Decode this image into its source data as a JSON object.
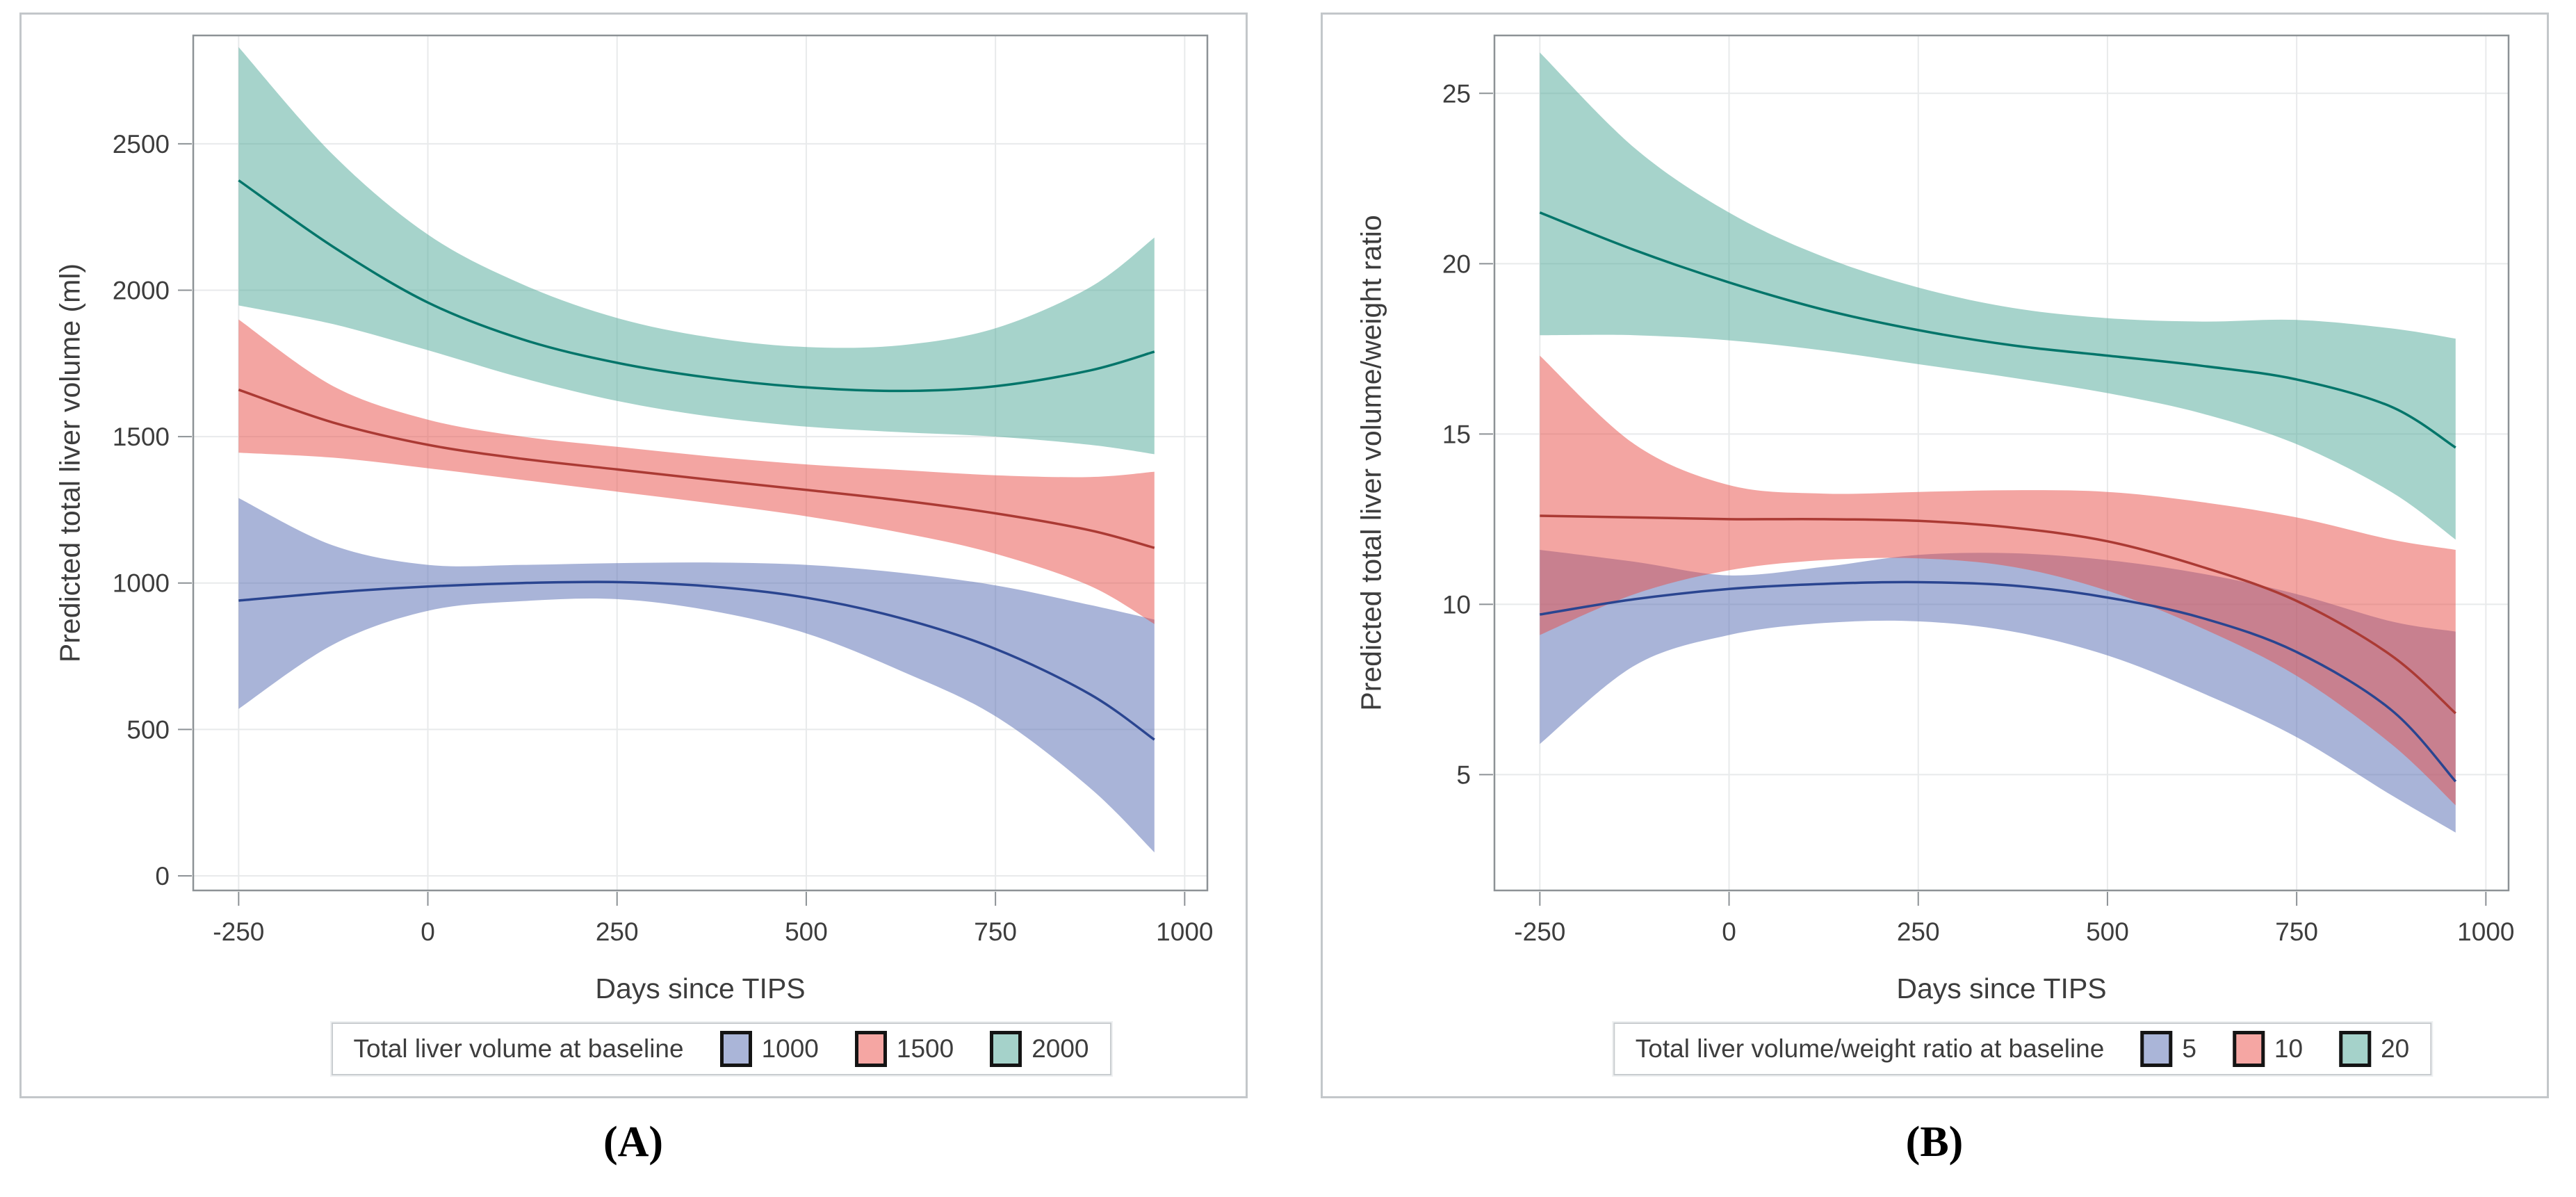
{
  "figure": {
    "captions": [
      "(A)",
      "(B)"
    ]
  },
  "chart_data": [
    {
      "type": "line",
      "panel": "A",
      "x_label": "Days since TIPS",
      "y_label": "Predicted total liver volume (ml)",
      "x_ticks": [
        -250,
        0,
        250,
        500,
        750,
        1000
      ],
      "y_ticks": [
        0,
        500,
        1000,
        1500,
        2000,
        2500
      ],
      "x_range": [
        -310,
        1030
      ],
      "y_range": [
        -50,
        2870
      ],
      "grid": true,
      "legend": {
        "title": "Total liver volume at baseline",
        "position": "bottom"
      },
      "x": [
        -250,
        -125,
        0,
        125,
        250,
        375,
        500,
        625,
        750,
        875,
        960
      ],
      "series": [
        {
          "name": "1000",
          "line_color": "#2a4590",
          "band_color": "#5469b1",
          "band_opacity": 0.5,
          "swatch": "#aab5d8",
          "center": [
            940,
            968,
            988,
            1000,
            1003,
            988,
            950,
            880,
            775,
            620,
            465
          ],
          "upper": [
            1290,
            1128,
            1062,
            1062,
            1068,
            1070,
            1062,
            1035,
            992,
            925,
            875
          ],
          "lower": [
            570,
            790,
            905,
            938,
            945,
            905,
            828,
            700,
            545,
            300,
            80
          ]
        },
        {
          "name": "1500",
          "line_color": "#ab3a34",
          "band_color": "#e74b45",
          "band_opacity": 0.5,
          "swatch": "#f5a6a3",
          "center": [
            1660,
            1548,
            1472,
            1424,
            1388,
            1352,
            1318,
            1282,
            1238,
            1180,
            1120
          ],
          "upper": [
            1900,
            1672,
            1558,
            1500,
            1465,
            1432,
            1405,
            1386,
            1368,
            1362,
            1380
          ],
          "lower": [
            1445,
            1428,
            1392,
            1352,
            1312,
            1272,
            1228,
            1172,
            1100,
            990,
            860
          ]
        },
        {
          "name": "2000",
          "line_color": "#03756a",
          "band_color": "#4da797",
          "band_opacity": 0.5,
          "swatch": "#a5d2ca",
          "center": [
            2375,
            2148,
            1958,
            1832,
            1752,
            1700,
            1668,
            1656,
            1672,
            1726,
            1790
          ],
          "upper": [
            2830,
            2462,
            2190,
            2020,
            1905,
            1838,
            1806,
            1812,
            1870,
            2010,
            2180
          ],
          "lower": [
            1948,
            1884,
            1795,
            1700,
            1622,
            1568,
            1534,
            1515,
            1500,
            1472,
            1440
          ]
        }
      ]
    },
    {
      "type": "line",
      "panel": "B",
      "x_label": "Days since TIPS",
      "y_label": "Predicted total liver volume/weight ratio",
      "x_ticks": [
        -250,
        0,
        250,
        500,
        750,
        1000
      ],
      "y_ticks": [
        5,
        10,
        15,
        20,
        25
      ],
      "x_range": [
        -310,
        1030
      ],
      "y_range": [
        1.6,
        26.7
      ],
      "grid": true,
      "legend": {
        "title": "Total liver volume/weight ratio at baseline",
        "position": "bottom"
      },
      "x": [
        -250,
        -125,
        0,
        125,
        250,
        375,
        500,
        625,
        750,
        875,
        960
      ],
      "series": [
        {
          "name": "5",
          "line_color": "#2a4590",
          "band_color": "#5469b1",
          "band_opacity": 0.5,
          "swatch": "#aab5d8",
          "center": [
            9.7,
            10.15,
            10.45,
            10.6,
            10.65,
            10.55,
            10.2,
            9.6,
            8.6,
            6.9,
            4.8
          ],
          "upper": [
            11.6,
            11.25,
            10.85,
            11.1,
            11.45,
            11.5,
            11.3,
            10.9,
            10.3,
            9.5,
            9.2
          ],
          "lower": [
            5.9,
            8.2,
            9.1,
            9.45,
            9.5,
            9.2,
            8.5,
            7.4,
            6.1,
            4.4,
            3.3
          ]
        },
        {
          "name": "10",
          "line_color": "#ab3a34",
          "band_color": "#e74b45",
          "band_opacity": 0.5,
          "swatch": "#f5a6a3",
          "center": [
            12.6,
            12.55,
            12.5,
            12.5,
            12.45,
            12.25,
            11.85,
            11.1,
            10.1,
            8.5,
            6.8
          ],
          "upper": [
            17.3,
            14.7,
            13.5,
            13.25,
            13.3,
            13.35,
            13.3,
            13.0,
            12.55,
            11.9,
            11.6
          ],
          "lower": [
            9.1,
            10.3,
            11.0,
            11.3,
            11.35,
            11.1,
            10.4,
            9.3,
            7.9,
            5.9,
            4.1
          ]
        },
        {
          "name": "20",
          "line_color": "#03756a",
          "band_color": "#4da797",
          "band_opacity": 0.5,
          "swatch": "#a5d2ca",
          "center": [
            21.5,
            20.4,
            19.45,
            18.65,
            18.05,
            17.6,
            17.3,
            17.0,
            16.6,
            15.8,
            14.6
          ],
          "upper": [
            26.2,
            23.4,
            21.5,
            20.2,
            19.3,
            18.7,
            18.4,
            18.3,
            18.35,
            18.1,
            17.8
          ],
          "lower": [
            17.9,
            17.9,
            17.75,
            17.45,
            17.05,
            16.65,
            16.2,
            15.6,
            14.7,
            13.3,
            11.9
          ]
        }
      ]
    }
  ]
}
